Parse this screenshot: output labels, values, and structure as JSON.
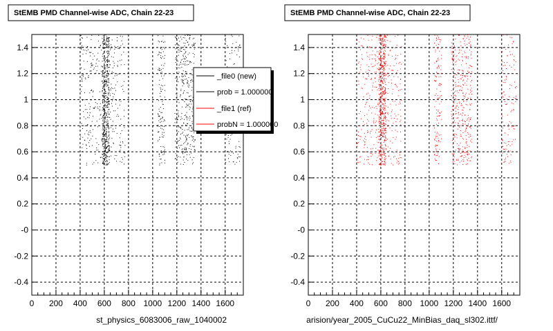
{
  "footer_text": "",
  "chart_data": [
    {
      "type": "scatter",
      "title": "StEMB PMD Channel-wise ADC, Chain 22-23",
      "xlabel": "st_physics_6083006_raw_1040002",
      "ylabel": "",
      "xlim": [
        0,
        1750
      ],
      "ylim": [
        -0.5,
        1.5
      ],
      "x_ticks": [
        0,
        200,
        400,
        600,
        800,
        1000,
        1200,
        1400,
        1600
      ],
      "y_ticks": [
        -0.4,
        -0.2,
        0,
        0.2,
        0.4,
        0.6,
        0.8,
        1,
        1.2,
        1.4
      ],
      "y_tick_labels": [
        "-0.4",
        "-0.2",
        "-0",
        "0.2",
        "0.4",
        "0.6",
        "0.8",
        "1",
        "1.2",
        "1.4"
      ],
      "grid": true,
      "marker_color": "#000000",
      "y_range_of_points": [
        0.5,
        1.5
      ],
      "clusters": [
        {
          "x_range": [
            400,
            580
          ],
          "density": "sparse"
        },
        {
          "x_range": [
            580,
            640
          ],
          "density": "dense"
        },
        {
          "x_range": [
            640,
            770
          ],
          "density": "sparse"
        },
        {
          "x_range": [
            1040,
            1100
          ],
          "density": "medium"
        },
        {
          "x_range": [
            1180,
            1350
          ],
          "density": "medium"
        },
        {
          "x_range": [
            1600,
            1720
          ],
          "density": "sparse"
        }
      ],
      "legend": {
        "placement": "top-right",
        "entries": [
          {
            "label": "_file0 (new)",
            "color": "#000000"
          },
          {
            "label": "prob = 1.000000",
            "color": "#000000"
          },
          {
            "label": "_file1 (ref)",
            "color": "#ff0000"
          },
          {
            "label": "probN = 1.000000",
            "color": "#ff0000"
          }
        ]
      }
    },
    {
      "type": "scatter",
      "title": "StEMB PMD Channel-wise ADC, Chain 22-23",
      "xlabel": "arision/year_2005_CuCu22_MinBias_daq_sl302.ittf/",
      "ylabel": "",
      "xlim": [
        0,
        1750
      ],
      "ylim": [
        -0.5,
        1.5
      ],
      "x_ticks": [
        0,
        200,
        400,
        600,
        800,
        1000,
        1200,
        1400,
        1600
      ],
      "y_ticks": [
        -0.4,
        -0.2,
        0,
        0.2,
        0.4,
        0.6,
        0.8,
        1,
        1.2,
        1.4
      ],
      "y_tick_labels": [
        "-0.4",
        "-0.2",
        "-0",
        "0.2",
        "0.4",
        "0.6",
        "0.8",
        "1",
        "1.2",
        "1.4"
      ],
      "grid": true,
      "marker_color": "#ff0000",
      "y_range_of_points": [
        0.5,
        1.5
      ],
      "clusters": [
        {
          "x_range": [
            400,
            580
          ],
          "density": "sparse"
        },
        {
          "x_range": [
            580,
            640
          ],
          "density": "dense"
        },
        {
          "x_range": [
            640,
            770
          ],
          "density": "sparse"
        },
        {
          "x_range": [
            1040,
            1100
          ],
          "density": "medium"
        },
        {
          "x_range": [
            1180,
            1350
          ],
          "density": "medium"
        },
        {
          "x_range": [
            1600,
            1720
          ],
          "density": "sparse"
        }
      ]
    }
  ]
}
